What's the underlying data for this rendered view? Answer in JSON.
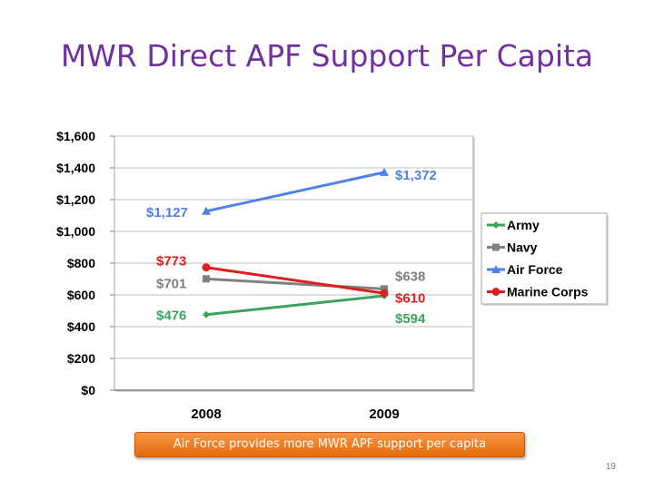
{
  "slide": {
    "title": "MWR Direct APF Support Per Capita",
    "callout": "Air Force provides more MWR APF support per capita",
    "page_number": "19"
  },
  "chart_data": {
    "type": "line",
    "categories": [
      "2008",
      "2009"
    ],
    "ylim": [
      0,
      1600
    ],
    "yticks": [
      {
        "value": 0,
        "label": "$0"
      },
      {
        "value": 200,
        "label": "$200"
      },
      {
        "value": 400,
        "label": "$400"
      },
      {
        "value": 600,
        "label": "$600"
      },
      {
        "value": 800,
        "label": "$800"
      },
      {
        "value": 1000,
        "label": "$1,000"
      },
      {
        "value": 1200,
        "label": "$1,200"
      },
      {
        "value": 1400,
        "label": "$1,400"
      },
      {
        "value": 1600,
        "label": "$1,600"
      }
    ],
    "grid": true,
    "legend_position": "right",
    "series": [
      {
        "name": "Army",
        "values": [
          476,
          594
        ],
        "labels": [
          "$476",
          "$594"
        ],
        "color": "#3aa35c",
        "marker": "diamond"
      },
      {
        "name": "Navy",
        "values": [
          701,
          638
        ],
        "labels": [
          "$701",
          "$638"
        ],
        "color": "#808080",
        "marker": "square"
      },
      {
        "name": "Air Force",
        "values": [
          1127,
          1372
        ],
        "labels": [
          "$1,127",
          "$1,372"
        ],
        "color": "#4f81e6",
        "marker": "triangle"
      },
      {
        "name": "Marine Corps",
        "values": [
          773,
          610
        ],
        "labels": [
          "$773",
          "$610"
        ],
        "color": "#e01e1e",
        "marker": "circle"
      }
    ]
  }
}
